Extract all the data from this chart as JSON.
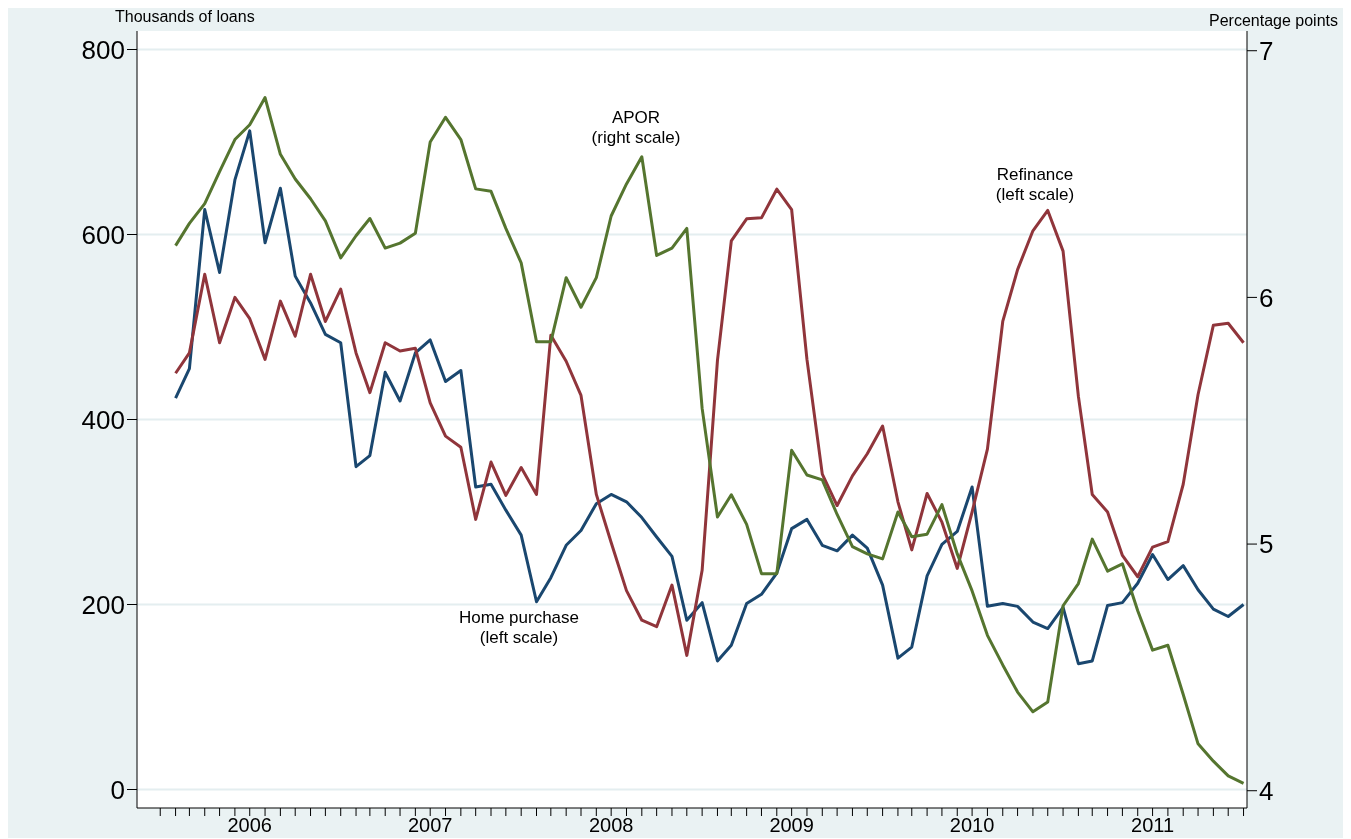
{
  "chart_data": {
    "type": "line",
    "ylabel": "Thousands of loans",
    "y2label": "Percentage points",
    "x": [
      "2006-02",
      "2006-03",
      "2006-04",
      "2006-05",
      "2006-06",
      "2006-07",
      "2006-08",
      "2006-09",
      "2006-10",
      "2006-11",
      "2006-12",
      "2007-01",
      "2007-02",
      "2007-03",
      "2007-04",
      "2007-05",
      "2007-06",
      "2007-07",
      "2007-08",
      "2007-09",
      "2007-10",
      "2007-11",
      "2007-12",
      "2008-01",
      "2008-02",
      "2008-03",
      "2008-04",
      "2008-05",
      "2008-06",
      "2008-07",
      "2008-08",
      "2008-09",
      "2008-10",
      "2008-11",
      "2008-12",
      "2009-01",
      "2009-02",
      "2009-03",
      "2009-04",
      "2009-05",
      "2009-06",
      "2009-07",
      "2009-08",
      "2009-09",
      "2009-10",
      "2009-11",
      "2009-12",
      "2010-01",
      "2010-02",
      "2010-03",
      "2010-04",
      "2010-05",
      "2010-06",
      "2010-07",
      "2010-08",
      "2010-09",
      "2010-10",
      "2010-11",
      "2010-12",
      "2011-01",
      "2011-02",
      "2011-03",
      "2011-04",
      "2011-05",
      "2011-06",
      "2011-07",
      "2011-08",
      "2011-09",
      "2011-10",
      "2011-11",
      "2011-12",
      "2012-01"
    ],
    "series": [
      {
        "color": "#1a476f",
        "values": [
          423,
          455,
          627,
          559,
          659,
          712,
          591,
          650,
          555,
          526,
          492,
          483,
          349,
          361,
          451,
          420,
          472,
          486,
          441,
          453,
          327,
          330,
          302,
          275,
          203,
          229,
          264,
          280,
          309,
          319,
          311,
          294,
          273,
          252,
          183,
          202,
          139,
          156,
          201,
          211,
          234,
          282,
          292,
          264,
          258,
          275,
          261,
          221,
          142,
          154,
          231,
          265,
          279,
          327,
          198,
          201,
          198,
          181,
          174,
          197,
          136,
          139,
          199,
          202,
          223,
          254,
          227,
          242,
          216,
          195,
          187,
          200
        ]
      },
      {
        "color": "#90353b",
        "values": [
          450,
          472,
          557,
          483,
          532,
          509,
          465,
          528,
          490,
          557,
          506,
          541,
          472,
          429,
          483,
          474,
          477,
          418,
          382,
          370,
          292,
          354,
          318,
          348,
          319,
          491,
          463,
          426,
          319,
          267,
          215,
          183,
          176,
          221,
          145,
          237,
          464,
          593,
          617,
          618,
          649,
          627,
          465,
          341,
          307,
          339,
          363,
          393,
          311,
          259,
          320,
          289,
          239,
          300,
          368,
          506,
          562,
          604,
          626,
          582,
          425,
          319,
          300,
          253,
          230,
          262,
          268,
          330,
          427,
          502,
          504,
          483
        ]
      },
      {
        "color": "#55752f",
        "axis": "y2",
        "values": [
          6.21,
          6.3,
          6.38,
          6.51,
          6.64,
          6.7,
          6.81,
          6.58,
          6.48,
          6.4,
          6.31,
          6.16,
          6.25,
          6.32,
          6.2,
          6.22,
          6.26,
          6.63,
          6.73,
          6.64,
          6.44,
          6.43,
          6.28,
          6.14,
          5.82,
          5.82,
          6.08,
          5.96,
          6.08,
          6.33,
          6.46,
          6.57,
          6.17,
          6.2,
          6.28,
          5.55,
          5.11,
          5.2,
          5.08,
          4.88,
          4.88,
          5.38,
          5.28,
          5.26,
          5.12,
          4.99,
          4.96,
          4.94,
          5.13,
          5.03,
          5.04,
          5.16,
          4.96,
          4.81,
          4.63,
          4.51,
          4.4,
          4.32,
          4.36,
          4.75,
          4.84,
          5.02,
          4.89,
          4.92,
          4.73,
          4.57,
          4.59,
          4.39,
          4.19,
          4.12,
          4.06,
          4.03
        ]
      }
    ],
    "xlim": [
      "2005-11-15",
      "2012-01-08"
    ],
    "xticks": [
      {
        "value": "2006-01",
        "label": null
      },
      {
        "value": "2006-02",
        "label": null
      },
      {
        "value": "2006-03",
        "label": null
      },
      {
        "value": "2006-04",
        "label": null
      },
      {
        "value": "2006-05",
        "label": null
      },
      {
        "value": "2006-06",
        "label": null
      },
      {
        "value": "2006-07",
        "label": "2006"
      },
      {
        "value": "2006-08",
        "label": null
      },
      {
        "value": "2006-09",
        "label": null
      },
      {
        "value": "2006-10",
        "label": null
      },
      {
        "value": "2006-11",
        "label": null
      },
      {
        "value": "2006-12",
        "label": null
      },
      {
        "value": "2007-01",
        "label": null
      },
      {
        "value": "2007-02",
        "label": null
      },
      {
        "value": "2007-03",
        "label": null
      },
      {
        "value": "2007-04",
        "label": null
      },
      {
        "value": "2007-05",
        "label": null
      },
      {
        "value": "2007-06",
        "label": null
      },
      {
        "value": "2007-07",
        "label": "2007"
      },
      {
        "value": "2007-08",
        "label": null
      },
      {
        "value": "2007-09",
        "label": null
      },
      {
        "value": "2007-10",
        "label": null
      },
      {
        "value": "2007-11",
        "label": null
      },
      {
        "value": "2007-12",
        "label": null
      },
      {
        "value": "2008-01",
        "label": null
      },
      {
        "value": "2008-02",
        "label": null
      },
      {
        "value": "2008-03",
        "label": null
      },
      {
        "value": "2008-04",
        "label": null
      },
      {
        "value": "2008-05",
        "label": null
      },
      {
        "value": "2008-06",
        "label": null
      },
      {
        "value": "2008-07",
        "label": "2008"
      },
      {
        "value": "2008-08",
        "label": null
      },
      {
        "value": "2008-09",
        "label": null
      },
      {
        "value": "2008-10",
        "label": null
      },
      {
        "value": "2008-11",
        "label": null
      },
      {
        "value": "2008-12",
        "label": null
      },
      {
        "value": "2009-01",
        "label": null
      },
      {
        "value": "2009-02",
        "label": null
      },
      {
        "value": "2009-03",
        "label": null
      },
      {
        "value": "2009-04",
        "label": null
      },
      {
        "value": "2009-05",
        "label": null
      },
      {
        "value": "2009-06",
        "label": null
      },
      {
        "value": "2009-07",
        "label": "2009"
      },
      {
        "value": "2009-08",
        "label": null
      },
      {
        "value": "2009-09",
        "label": null
      },
      {
        "value": "2009-10",
        "label": null
      },
      {
        "value": "2009-11",
        "label": null
      },
      {
        "value": "2009-12",
        "label": null
      },
      {
        "value": "2010-01",
        "label": null
      },
      {
        "value": "2010-02",
        "label": null
      },
      {
        "value": "2010-03",
        "label": null
      },
      {
        "value": "2010-04",
        "label": null
      },
      {
        "value": "2010-05",
        "label": null
      },
      {
        "value": "2010-06",
        "label": null
      },
      {
        "value": "2010-07",
        "label": "2010"
      },
      {
        "value": "2010-08",
        "label": null
      },
      {
        "value": "2010-09",
        "label": null
      },
      {
        "value": "2010-10",
        "label": null
      },
      {
        "value": "2010-11",
        "label": null
      },
      {
        "value": "2010-12",
        "label": null
      },
      {
        "value": "2011-01",
        "label": null
      },
      {
        "value": "2011-02",
        "label": null
      },
      {
        "value": "2011-03",
        "label": null
      },
      {
        "value": "2011-04",
        "label": null
      },
      {
        "value": "2011-05",
        "label": null
      },
      {
        "value": "2011-06",
        "label": null
      },
      {
        "value": "2011-07",
        "label": "2011"
      },
      {
        "value": "2011-08",
        "label": null
      },
      {
        "value": "2011-09",
        "label": null
      },
      {
        "value": "2011-10",
        "label": null
      },
      {
        "value": "2011-11",
        "label": null
      },
      {
        "value": "2011-12",
        "label": null
      },
      {
        "value": "2012-01",
        "label": null
      }
    ],
    "ylim": [
      -20,
      820
    ],
    "yticks": [
      0,
      200,
      400,
      600,
      800
    ],
    "y2lim": [
      3.93,
      7.08
    ],
    "y2ticks": [
      4,
      5,
      6,
      7
    ],
    "annotations": [
      "APOR\n(right scale)",
      "Refinance\n(left scale)",
      "Home purchase\n(left scale)"
    ],
    "grid": "y",
    "marker": "none",
    "line_style": "solid"
  }
}
